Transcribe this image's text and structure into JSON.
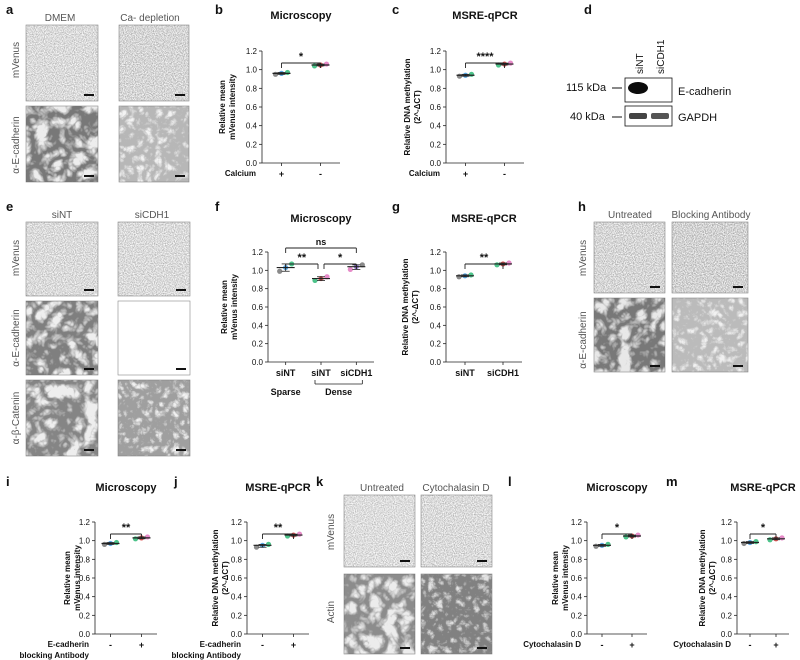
{
  "figure": {
    "panels": {
      "a": {
        "letter": "a",
        "col_labels": [
          "DMEM",
          "Ca- depletion"
        ],
        "row_labels": [
          "mVenus",
          "α-E-cadherin"
        ]
      },
      "d": {
        "letter": "d",
        "lanes": [
          "siNT",
          "siCDH1"
        ],
        "markers": [
          "115 kDa",
          "40 kDa"
        ],
        "bands": [
          "E-cadherin",
          "GAPDH"
        ]
      },
      "e": {
        "letter": "e",
        "col_labels": [
          "siNT",
          "siCDH1"
        ],
        "row_labels": [
          "mVenus",
          "α-E-cadherin",
          "α-β-Catenin"
        ]
      },
      "h": {
        "letter": "h",
        "col_labels": [
          "Untreated",
          "Blocking Antibody"
        ],
        "row_labels": [
          "mVenus",
          "α-E-cadherin"
        ]
      },
      "k": {
        "letter": "k",
        "col_labels": [
          "Untreated",
          "Cytochalasin D"
        ],
        "row_labels": [
          "mVenus",
          "Actin"
        ]
      }
    },
    "colors": {
      "dot_grey": "#8a8a8a",
      "dot_blue": "#5aa9e6",
      "dot_green": "#4cc38a",
      "dot_red": "#e05757",
      "dot_pink": "#e68ac8",
      "dot_purple": "#9b7fd8",
      "line": "#222222",
      "text": "#111111"
    }
  },
  "chart_data": [
    {
      "id": "b",
      "letter": "b",
      "type": "scatter",
      "title": "Microscopy",
      "ylabel": "Relative mean\nmVenus intensity",
      "ylim": [
        0.0,
        1.2
      ],
      "yticks": [
        "0.0",
        "0.2",
        "0.4",
        "0.6",
        "0.8",
        "1.0",
        "1.2"
      ],
      "categories": [
        "+",
        "-"
      ],
      "xaxis_title": "Calcium",
      "means": [
        0.96,
        1.05
      ],
      "points": [
        [
          0.95,
          0.96,
          0.97
        ],
        [
          1.04,
          1.05,
          1.06
        ]
      ],
      "sig": [
        {
          "from": 0,
          "to": 1,
          "label": "*"
        }
      ]
    },
    {
      "id": "c",
      "letter": "c",
      "type": "scatter",
      "title": "MSRE-qPCR",
      "ylabel": "Relative DNA methylation\n(2^-ΔCT)",
      "ylim": [
        0.0,
        1.2
      ],
      "yticks": [
        "0.0",
        "0.2",
        "0.4",
        "0.6",
        "0.8",
        "1.0",
        "1.2"
      ],
      "categories": [
        "+",
        "-"
      ],
      "xaxis_title": "Calcium",
      "means": [
        0.94,
        1.06
      ],
      "points": [
        [
          0.93,
          0.94,
          0.95
        ],
        [
          1.05,
          1.06,
          1.07
        ]
      ],
      "sig": [
        {
          "from": 0,
          "to": 1,
          "label": "****"
        }
      ]
    },
    {
      "id": "f",
      "letter": "f",
      "type": "scatter",
      "title": "Microscopy",
      "ylabel": "Relative mean\nmVenus intensity",
      "ylim": [
        0.0,
        1.2
      ],
      "yticks": [
        "0.0",
        "0.2",
        "0.4",
        "0.6",
        "0.8",
        "1.0",
        "1.2"
      ],
      "categories": [
        "siNT",
        "siNT",
        "siCDH1"
      ],
      "group_labels": [
        {
          "label": "Sparse",
          "from": 0,
          "to": 0
        },
        {
          "label": "Dense",
          "from": 1,
          "to": 2
        }
      ],
      "means": [
        1.03,
        0.91,
        1.04
      ],
      "points": [
        [
          0.99,
          1.03,
          1.07
        ],
        [
          0.89,
          0.91,
          0.93
        ],
        [
          1.01,
          1.04,
          1.06
        ]
      ],
      "sig": [
        {
          "from": 0,
          "to": 1,
          "label": "**",
          "level": 1
        },
        {
          "from": 1,
          "to": 2,
          "label": "*",
          "level": 1
        },
        {
          "from": 0,
          "to": 2,
          "label": "ns",
          "level": 2
        }
      ]
    },
    {
      "id": "g",
      "letter": "g",
      "type": "scatter",
      "title": "MSRE-qPCR",
      "ylabel": "Relative DNA methylation\n(2^-ΔCT)",
      "ylim": [
        0.0,
        1.2
      ],
      "yticks": [
        "0.0",
        "0.2",
        "0.4",
        "0.6",
        "0.8",
        "1.0",
        "1.2"
      ],
      "categories": [
        "siNT",
        "siCDH1"
      ],
      "means": [
        0.94,
        1.07
      ],
      "points": [
        [
          0.93,
          0.94,
          0.95
        ],
        [
          1.06,
          1.07,
          1.08
        ]
      ],
      "sig": [
        {
          "from": 0,
          "to": 1,
          "label": "**"
        }
      ]
    },
    {
      "id": "i",
      "letter": "i",
      "type": "scatter",
      "title": "Microscopy",
      "ylabel": "Relative mean\nmVenus intensity",
      "ylim": [
        0.0,
        1.2
      ],
      "yticks": [
        "0.0",
        "0.2",
        "0.4",
        "0.6",
        "0.8",
        "1.0",
        "1.2"
      ],
      "categories": [
        "-",
        "+"
      ],
      "xaxis_title": "E-cadherin\nblocking Antibody",
      "means": [
        0.97,
        1.03
      ],
      "points": [
        [
          0.96,
          0.97,
          0.98
        ],
        [
          1.02,
          1.03,
          1.04
        ]
      ],
      "sig": [
        {
          "from": 0,
          "to": 1,
          "label": "**"
        }
      ]
    },
    {
      "id": "j",
      "letter": "j",
      "type": "scatter",
      "title": "MSRE-qPCR",
      "ylabel": "Relative DNA methylation\n(2^-ΔCT)",
      "ylim": [
        0.0,
        1.2
      ],
      "yticks": [
        "0.0",
        "0.2",
        "0.4",
        "0.6",
        "0.8",
        "1.0",
        "1.2"
      ],
      "categories": [
        "-",
        "+"
      ],
      "xaxis_title": "E-cadherin\nblocking Antibody",
      "means": [
        0.95,
        1.06
      ],
      "points": [
        [
          0.93,
          0.95,
          0.96
        ],
        [
          1.05,
          1.06,
          1.07
        ]
      ],
      "sig": [
        {
          "from": 0,
          "to": 1,
          "label": "**"
        }
      ]
    },
    {
      "id": "l",
      "letter": "l",
      "type": "scatter",
      "title": "Microscopy",
      "ylabel": "Relative mean\nmVenus intensity",
      "ylim": [
        0.0,
        1.2
      ],
      "yticks": [
        "0.0",
        "0.2",
        "0.4",
        "0.6",
        "0.8",
        "1.0",
        "1.2"
      ],
      "categories": [
        "-",
        "+"
      ],
      "xaxis_title": "Cytochalasin D",
      "means": [
        0.95,
        1.05
      ],
      "points": [
        [
          0.94,
          0.95,
          0.96
        ],
        [
          1.04,
          1.05,
          1.06
        ]
      ],
      "sig": [
        {
          "from": 0,
          "to": 1,
          "label": "*"
        }
      ]
    },
    {
      "id": "m",
      "letter": "m",
      "type": "scatter",
      "title": "MSRE-qPCR",
      "ylabel": "Relative DNA methylation\n(2^-ΔCT)",
      "ylim": [
        0.0,
        1.2
      ],
      "yticks": [
        "0.0",
        "0.2",
        "0.4",
        "0.6",
        "0.8",
        "1.0",
        "1.2"
      ],
      "categories": [
        "-",
        "+"
      ],
      "xaxis_title": "Cytochalasin D",
      "means": [
        0.98,
        1.02
      ],
      "points": [
        [
          0.97,
          0.98,
          0.99
        ],
        [
          1.01,
          1.02,
          1.03
        ]
      ],
      "sig": [
        {
          "from": 0,
          "to": 1,
          "label": "*"
        }
      ]
    }
  ]
}
